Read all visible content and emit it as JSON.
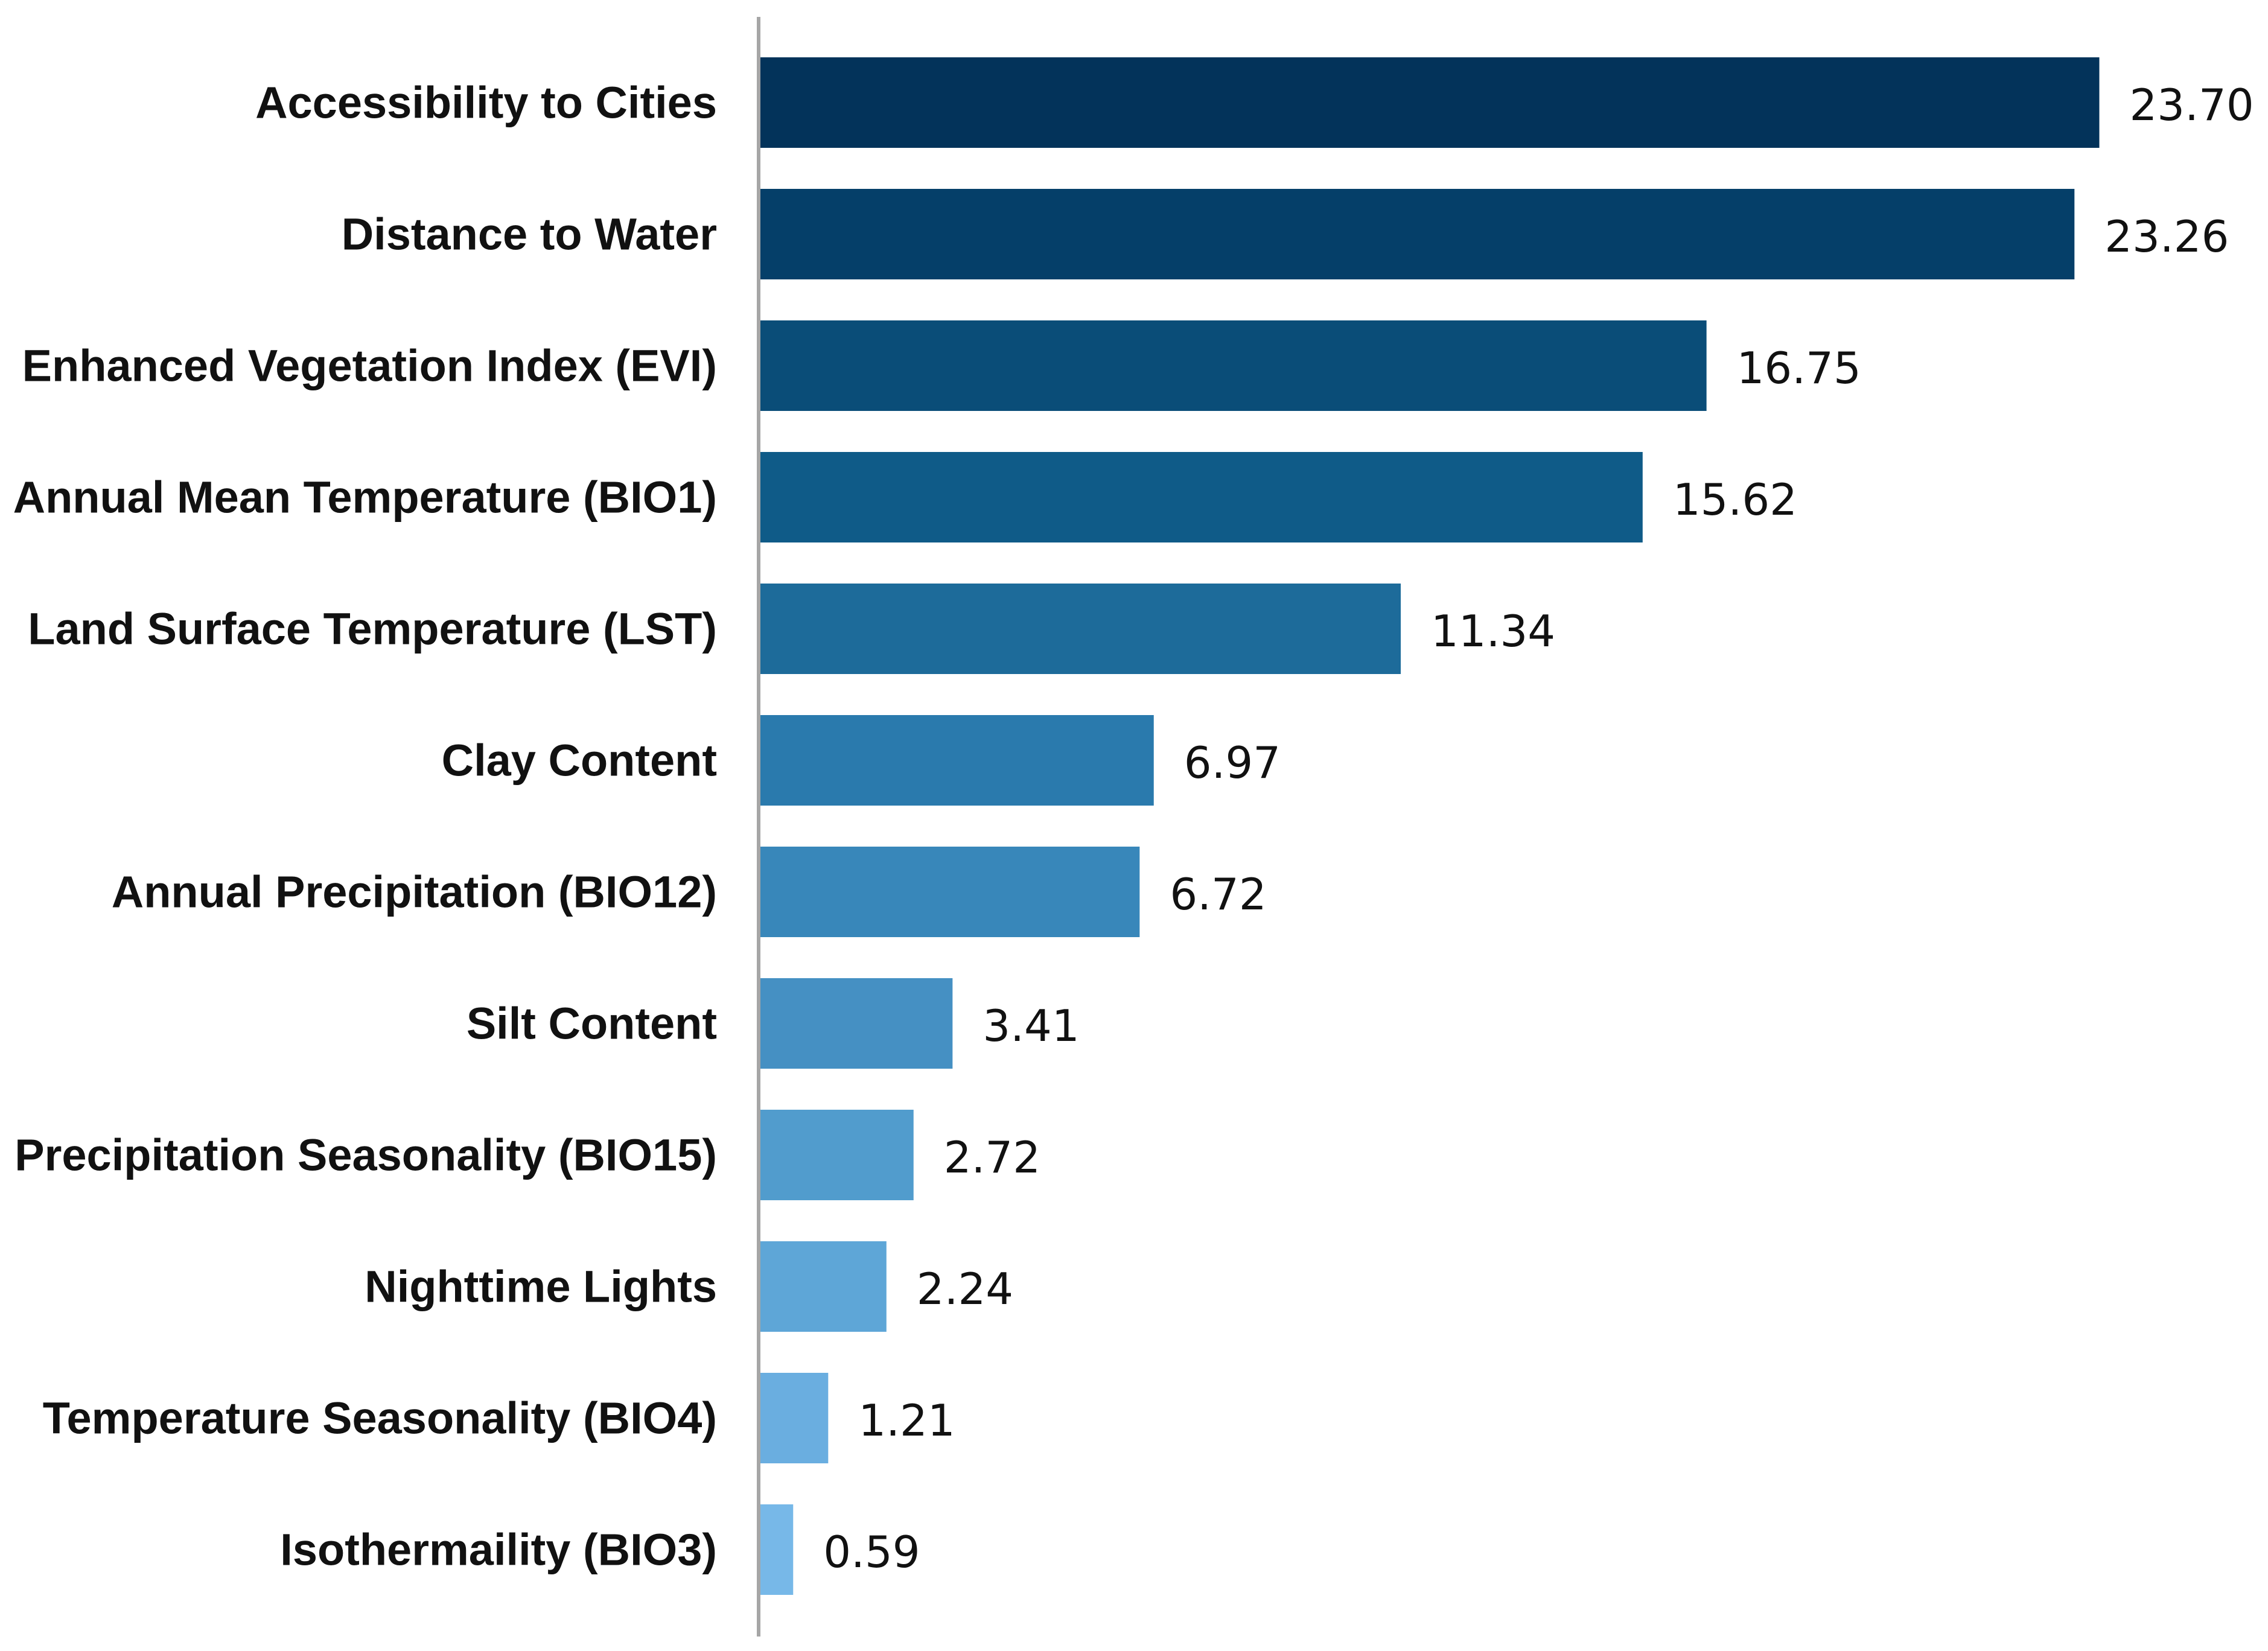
{
  "chart_data": {
    "type": "bar",
    "orientation": "horizontal",
    "title": "",
    "xlabel": "",
    "ylabel": "",
    "grid": false,
    "xlim": [
      0,
      24
    ],
    "categories": [
      "Accessibility to Cities",
      "Distance to Water",
      "Enhanced Vegetation Index (EVI)",
      "Annual Mean Temperature (BIO1)",
      "Land Surface Temperature (LST)",
      "Clay Content",
      "Annual Precipitation (BIO12)",
      "Silt Content",
      "Precipitation Seasonality (BIO15)",
      "Nighttime Lights",
      "Temperature Seasonality (BIO4)",
      "Isothermaility (BIO3)"
    ],
    "values": [
      23.7,
      23.26,
      16.75,
      15.62,
      11.34,
      6.97,
      6.72,
      3.41,
      2.72,
      2.24,
      1.21,
      0.59
    ],
    "value_labels": [
      "23.70",
      "23.26",
      "16.75",
      "15.62",
      "11.34",
      "6.97",
      "6.72",
      "3.41",
      "2.72",
      "2.24",
      "1.21",
      "0.59"
    ],
    "colors": [
      "#03335a",
      "#053f69",
      "#0a4d78",
      "#0f5b88",
      "#1d6b9a",
      "#2a7aad",
      "#3887ba",
      "#4590c3",
      "#519ccd",
      "#5ea6d7",
      "#6aaee0",
      "#77b8e8"
    ],
    "axis_color": "#a6a6a6"
  }
}
